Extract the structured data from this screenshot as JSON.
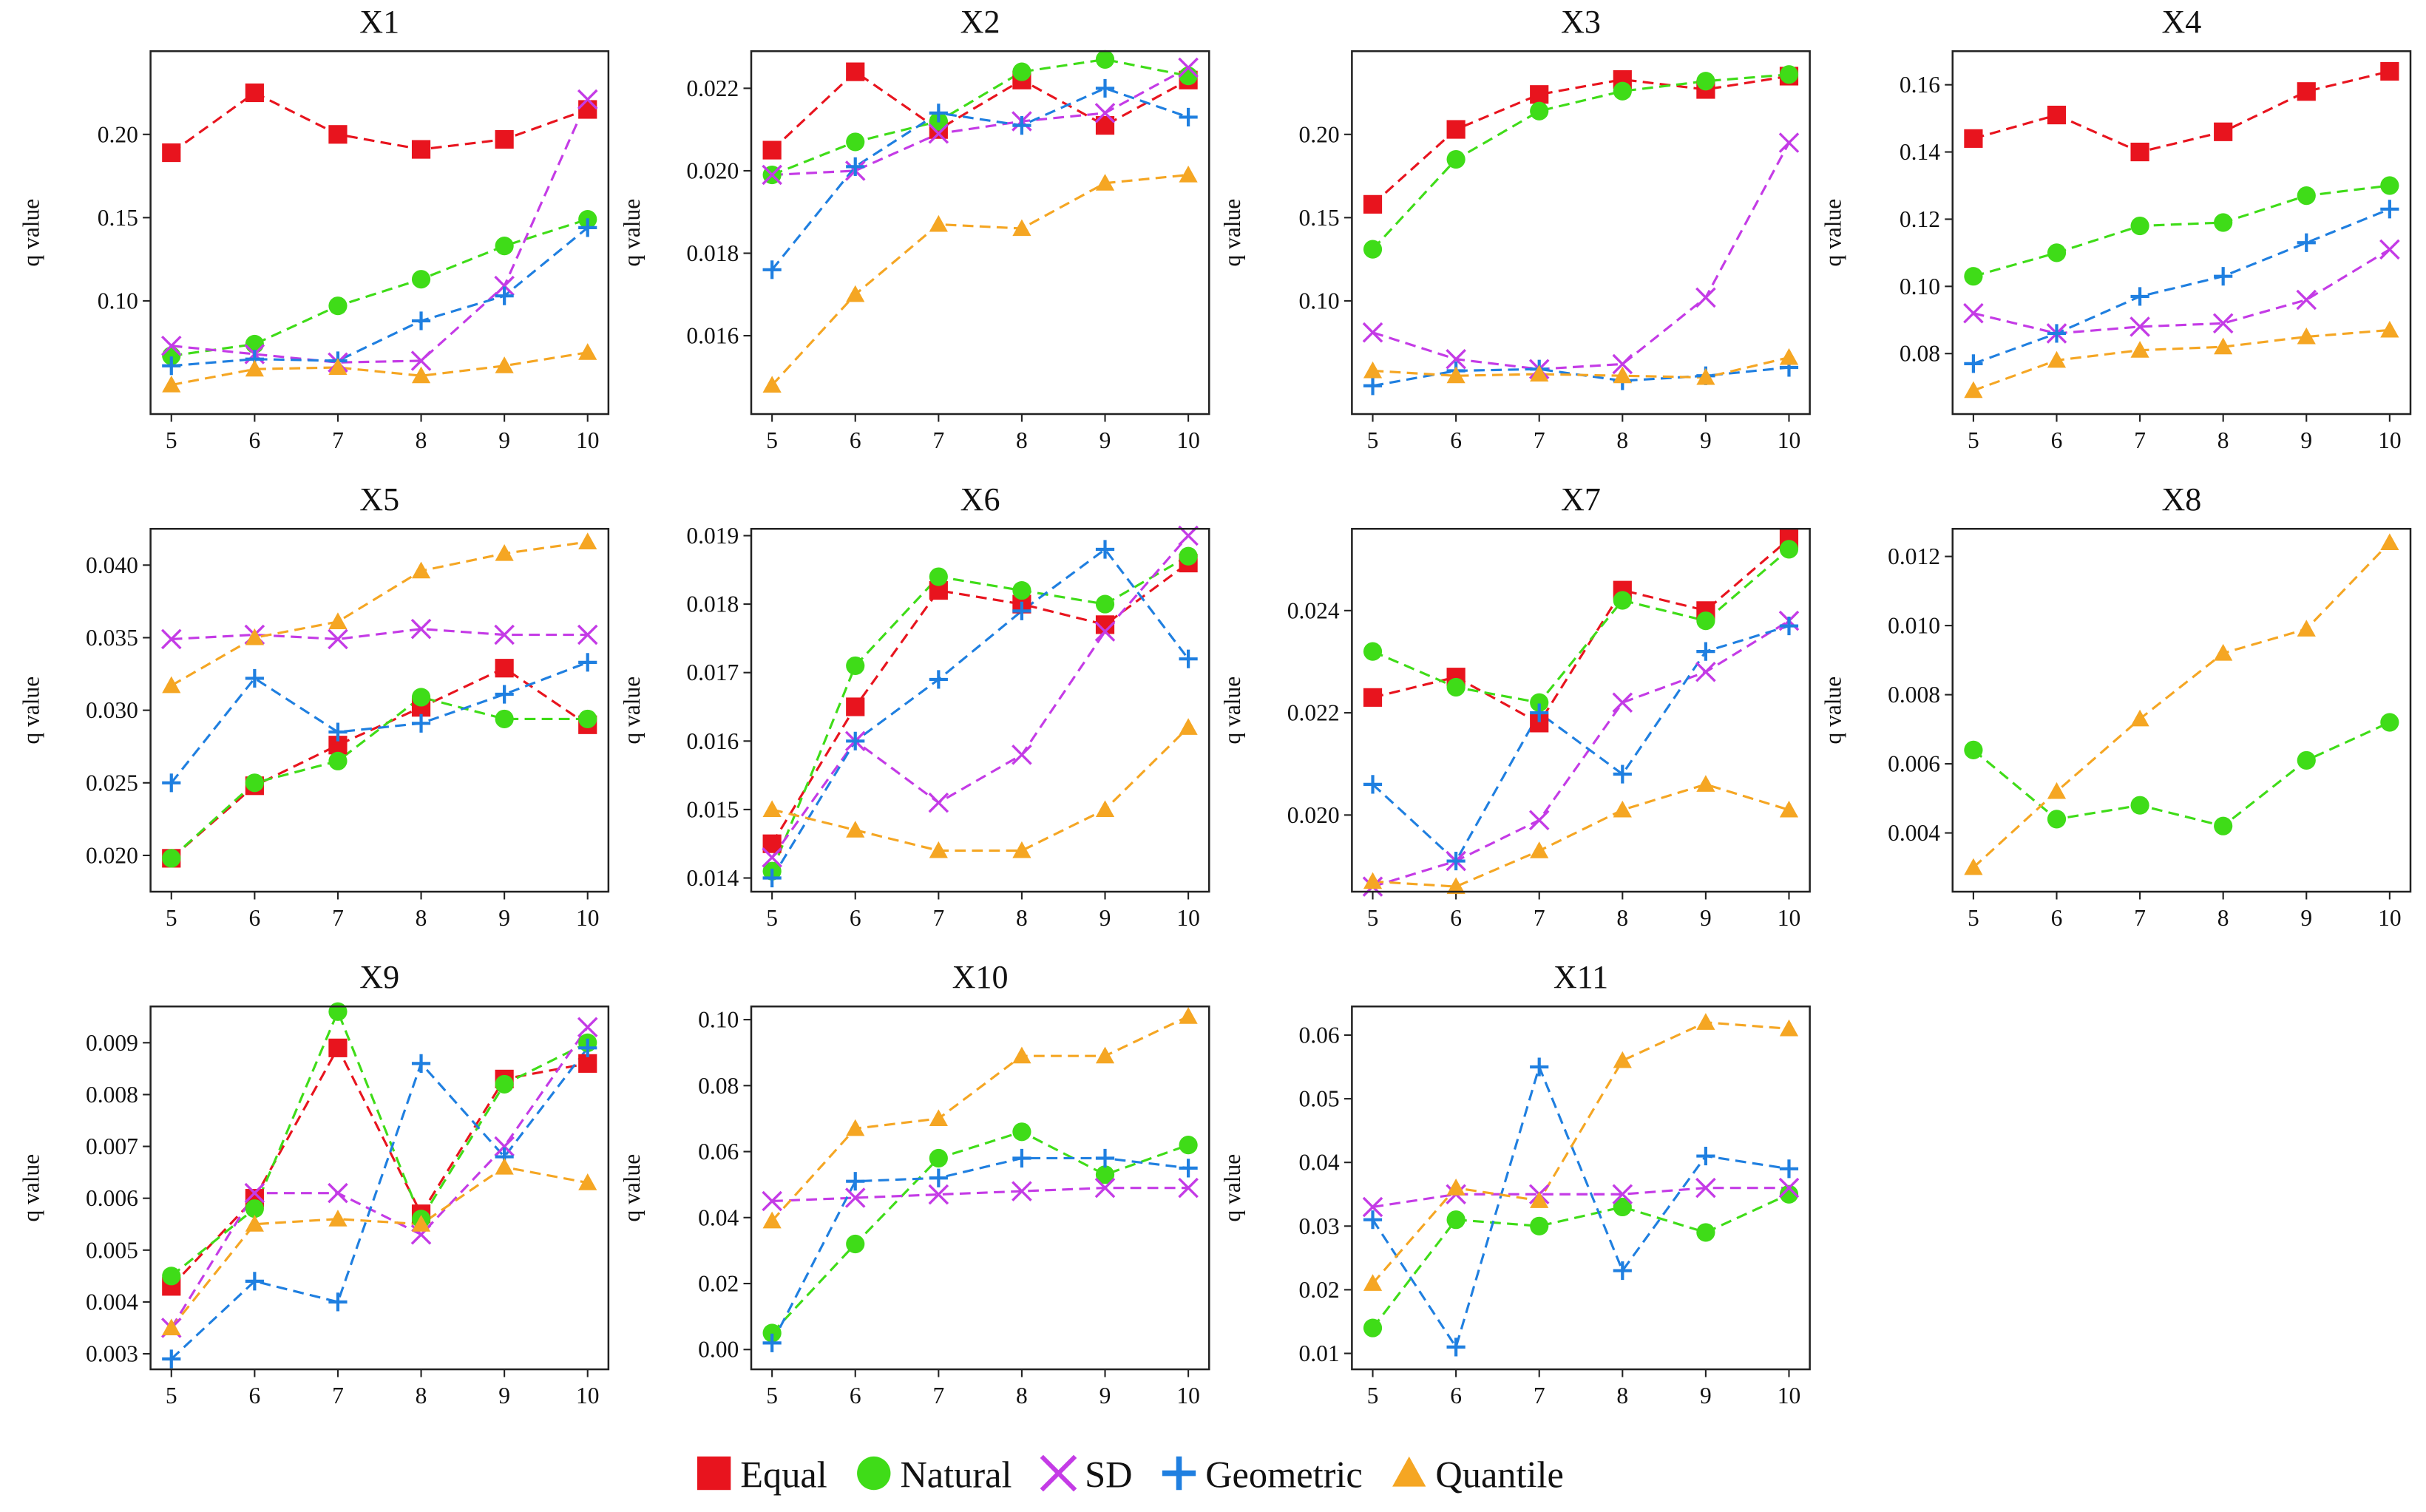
{
  "chart_data": [
    {
      "type": "line",
      "title": "X1",
      "ylabel": "q value",
      "x": [
        5,
        6,
        7,
        8,
        9,
        10
      ],
      "xlim": [
        4.75,
        10.25
      ],
      "xticks": [
        5,
        6,
        7,
        8,
        9,
        10
      ],
      "ylim": [
        0.032,
        0.25
      ],
      "yticks": [
        {
          "value": 0.1,
          "label": "0.10"
        },
        0.15,
        {
          "value": 0.2,
          "label": "0.20"
        }
      ],
      "series": [
        {
          "name": "Equal",
          "color": "#e8141e",
          "marker": "square",
          "values": [
            0.189,
            0.225,
            0.2,
            0.191,
            0.197,
            0.215
          ]
        },
        {
          "name": "Natural",
          "color": "#3fdc18",
          "marker": "circle",
          "values": [
            0.067,
            0.074,
            0.097,
            0.113,
            0.133,
            0.149
          ]
        },
        {
          "name": "SD",
          "color": "#c43be6",
          "marker": "x",
          "values": [
            0.073,
            0.068,
            0.063,
            0.064,
            0.109,
            0.221
          ]
        },
        {
          "name": "Geometric",
          "color": "#1f7fe0",
          "marker": "plus",
          "values": [
            0.061,
            0.065,
            0.064,
            0.088,
            0.103,
            0.144
          ]
        },
        {
          "name": "Quantile",
          "color": "#f5a623",
          "marker": "triangle",
          "values": [
            0.0495,
            0.059,
            0.06,
            0.055,
            0.061,
            0.069
          ]
        }
      ]
    },
    {
      "type": "line",
      "title": "X2",
      "ylabel": "q value",
      "x": [
        5,
        6,
        7,
        8,
        9,
        10
      ],
      "xlim": [
        4.75,
        10.25
      ],
      "xticks": [
        5,
        6,
        7,
        8,
        9,
        10
      ],
      "ylim": [
        0.0141,
        0.0229
      ],
      "yticks": [
        0.016,
        0.018,
        {
          "value": 0.02,
          "label": "0.020"
        },
        0.022
      ],
      "series": [
        {
          "name": "Equal",
          "color": "#e8141e",
          "marker": "square",
          "values": [
            0.0205,
            0.0224,
            0.021,
            0.0222,
            0.0211,
            0.0222
          ]
        },
        {
          "name": "Natural",
          "color": "#3fdc18",
          "marker": "circle",
          "values": [
            0.0199,
            0.0207,
            0.0212,
            0.0224,
            0.0227,
            0.0223
          ]
        },
        {
          "name": "SD",
          "color": "#c43be6",
          "marker": "x",
          "values": [
            0.0199,
            0.02,
            0.0209,
            0.0212,
            0.0214,
            0.0225
          ]
        },
        {
          "name": "Geometric",
          "color": "#1f7fe0",
          "marker": "plus",
          "values": [
            0.0176,
            0.0201,
            0.0214,
            0.0211,
            0.022,
            0.0213
          ]
        },
        {
          "name": "Quantile",
          "color": "#f5a623",
          "marker": "triangle",
          "values": [
            0.0148,
            0.017,
            0.0187,
            0.0186,
            0.0197,
            0.0199
          ]
        }
      ]
    },
    {
      "type": "line",
      "title": "X3",
      "ylabel": "q value",
      "x": [
        5,
        6,
        7,
        8,
        9,
        10
      ],
      "xlim": [
        4.75,
        10.25
      ],
      "xticks": [
        5,
        6,
        7,
        8,
        9,
        10
      ],
      "ylim": [
        0.032,
        0.25
      ],
      "yticks": [
        {
          "value": 0.1,
          "label": "0.10"
        },
        0.15,
        {
          "value": 0.2,
          "label": "0.20"
        }
      ],
      "series": [
        {
          "name": "Equal",
          "color": "#e8141e",
          "marker": "square",
          "values": [
            0.158,
            0.203,
            0.224,
            0.233,
            0.227,
            0.235
          ]
        },
        {
          "name": "Natural",
          "color": "#3fdc18",
          "marker": "circle",
          "values": [
            0.131,
            0.185,
            0.214,
            0.226,
            0.232,
            0.236
          ]
        },
        {
          "name": "SD",
          "color": "#c43be6",
          "marker": "x",
          "values": [
            0.081,
            0.065,
            0.059,
            0.062,
            0.102,
            0.195
          ]
        },
        {
          "name": "Geometric",
          "color": "#1f7fe0",
          "marker": "plus",
          "values": [
            0.049,
            0.058,
            0.059,
            0.052,
            0.055,
            0.06
          ]
        },
        {
          "name": "Quantile",
          "color": "#f5a623",
          "marker": "triangle",
          "values": [
            0.058,
            0.055,
            0.056,
            0.055,
            0.054,
            0.066
          ]
        }
      ]
    },
    {
      "type": "line",
      "title": "X4",
      "ylabel": "q value",
      "x": [
        5,
        6,
        7,
        8,
        9,
        10
      ],
      "xlim": [
        4.75,
        10.25
      ],
      "xticks": [
        5,
        6,
        7,
        8,
        9,
        10
      ],
      "ylim": [
        0.062,
        0.17
      ],
      "yticks": [
        0.08,
        {
          "value": 0.1,
          "label": "0.10"
        },
        0.12,
        0.14,
        0.16
      ],
      "series": [
        {
          "name": "Equal",
          "color": "#e8141e",
          "marker": "square",
          "values": [
            0.144,
            0.151,
            0.14,
            0.146,
            0.158,
            0.164
          ]
        },
        {
          "name": "Natural",
          "color": "#3fdc18",
          "marker": "circle",
          "values": [
            0.103,
            0.11,
            0.118,
            0.119,
            0.127,
            0.13
          ]
        },
        {
          "name": "SD",
          "color": "#c43be6",
          "marker": "x",
          "values": [
            0.092,
            0.086,
            0.088,
            0.089,
            0.096,
            0.111
          ]
        },
        {
          "name": "Geometric",
          "color": "#1f7fe0",
          "marker": "plus",
          "values": [
            0.077,
            0.086,
            0.097,
            0.103,
            0.113,
            0.123
          ]
        },
        {
          "name": "Quantile",
          "color": "#f5a623",
          "marker": "triangle",
          "values": [
            0.069,
            0.078,
            0.081,
            0.082,
            0.085,
            0.087
          ]
        }
      ]
    },
    {
      "type": "line",
      "title": "X5",
      "ylabel": "q value",
      "x": [
        5,
        6,
        7,
        8,
        9,
        10
      ],
      "xlim": [
        4.75,
        10.25
      ],
      "xticks": [
        5,
        6,
        7,
        8,
        9,
        10
      ],
      "ylim": [
        0.0175,
        0.0425
      ],
      "yticks": [
        {
          "value": 0.02,
          "label": "0.020"
        },
        0.025,
        {
          "value": 0.03,
          "label": "0.030"
        },
        0.035,
        {
          "value": 0.04,
          "label": "0.040"
        }
      ],
      "series": [
        {
          "name": "Equal",
          "color": "#e8141e",
          "marker": "square",
          "values": [
            0.0198,
            0.0248,
            0.0276,
            0.0302,
            0.0329,
            0.029
          ]
        },
        {
          "name": "Natural",
          "color": "#3fdc18",
          "marker": "circle",
          "values": [
            0.0198,
            0.025,
            0.0265,
            0.0309,
            0.0294,
            0.0294
          ]
        },
        {
          "name": "SD",
          "color": "#c43be6",
          "marker": "x",
          "values": [
            0.0349,
            0.0352,
            0.0349,
            0.0356,
            0.0352,
            0.0352
          ]
        },
        {
          "name": "Geometric",
          "color": "#1f7fe0",
          "marker": "plus",
          "values": [
            0.025,
            0.0322,
            0.0285,
            0.0291,
            0.0311,
            0.0333
          ]
        },
        {
          "name": "Quantile",
          "color": "#f5a623",
          "marker": "triangle",
          "values": [
            0.0317,
            0.035,
            0.0361,
            0.0396,
            0.0408,
            0.0416
          ]
        }
      ]
    },
    {
      "type": "line",
      "title": "X6",
      "ylabel": "q value",
      "x": [
        5,
        6,
        7,
        8,
        9,
        10
      ],
      "xlim": [
        4.75,
        10.25
      ],
      "xticks": [
        5,
        6,
        7,
        8,
        9,
        10
      ],
      "ylim": [
        0.0138,
        0.0191
      ],
      "yticks": [
        0.014,
        0.015,
        0.016,
        0.017,
        0.018,
        0.019
      ],
      "series": [
        {
          "name": "Equal",
          "color": "#e8141e",
          "marker": "square",
          "values": [
            0.0145,
            0.0165,
            0.0182,
            0.018,
            0.0177,
            0.0186
          ]
        },
        {
          "name": "Natural",
          "color": "#3fdc18",
          "marker": "circle",
          "values": [
            0.0141,
            0.0171,
            0.0184,
            0.0182,
            0.018,
            0.0187
          ]
        },
        {
          "name": "SD",
          "color": "#c43be6",
          "marker": "x",
          "values": [
            0.0143,
            0.016,
            0.0151,
            0.0158,
            0.0176,
            0.019
          ]
        },
        {
          "name": "Geometric",
          "color": "#1f7fe0",
          "marker": "plus",
          "values": [
            0.014,
            0.016,
            0.0169,
            0.0179,
            0.0188,
            0.0172
          ]
        },
        {
          "name": "Quantile",
          "color": "#f5a623",
          "marker": "triangle",
          "values": [
            0.015,
            0.0147,
            0.0144,
            0.0144,
            0.015,
            0.0162
          ]
        }
      ]
    },
    {
      "type": "line",
      "title": "X7",
      "ylabel": "q value",
      "x": [
        5,
        6,
        7,
        8,
        9,
        10
      ],
      "xlim": [
        4.75,
        10.25
      ],
      "xticks": [
        5,
        6,
        7,
        8,
        9,
        10
      ],
      "ylim": [
        0.0185,
        0.0256
      ],
      "yticks": [
        {
          "value": 0.02,
          "label": "0.020"
        },
        0.022,
        0.024
      ],
      "series": [
        {
          "name": "Equal",
          "color": "#e8141e",
          "marker": "square",
          "values": [
            0.0223,
            0.0227,
            0.0218,
            0.0244,
            0.024,
            0.0254
          ]
        },
        {
          "name": "Natural",
          "color": "#3fdc18",
          "marker": "circle",
          "values": [
            0.0232,
            0.0225,
            0.0222,
            0.0242,
            0.0238,
            0.0252
          ]
        },
        {
          "name": "SD",
          "color": "#c43be6",
          "marker": "x",
          "values": [
            0.0186,
            0.0191,
            0.0199,
            0.0222,
            0.0228,
            0.0238
          ]
        },
        {
          "name": "Geometric",
          "color": "#1f7fe0",
          "marker": "plus",
          "values": [
            0.0206,
            0.0191,
            0.022,
            0.0208,
            0.0232,
            0.0237
          ]
        },
        {
          "name": "Quantile",
          "color": "#f5a623",
          "marker": "triangle",
          "values": [
            0.0187,
            0.0186,
            0.0193,
            0.0201,
            0.0206,
            0.0201
          ]
        }
      ]
    },
    {
      "type": "line",
      "title": "X8",
      "ylabel": "q value",
      "x": [
        5,
        6,
        7,
        8,
        9,
        10
      ],
      "xlim": [
        4.75,
        10.25
      ],
      "xticks": [
        5,
        6,
        7,
        8,
        9,
        10
      ],
      "ylim": [
        0.0023,
        0.0128
      ],
      "yticks": [
        0.004,
        0.006,
        0.008,
        {
          "value": 0.01,
          "label": "0.010"
        },
        0.012
      ],
      "series": [
        {
          "name": "Natural",
          "color": "#3fdc18",
          "marker": "circle",
          "values": [
            0.0064,
            0.0044,
            0.0048,
            0.0042,
            0.0061,
            0.0072
          ]
        },
        {
          "name": "Quantile",
          "color": "#f5a623",
          "marker": "triangle",
          "values": [
            0.003,
            0.0052,
            0.0073,
            0.0092,
            0.0099,
            0.0124
          ]
        }
      ]
    },
    {
      "type": "line",
      "title": "X9",
      "ylabel": "q value",
      "x": [
        5,
        6,
        7,
        8,
        9,
        10
      ],
      "xlim": [
        4.75,
        10.25
      ],
      "xticks": [
        5,
        6,
        7,
        8,
        9,
        10
      ],
      "ylim": [
        0.0027,
        0.0097
      ],
      "yticks": [
        0.003,
        0.004,
        0.005,
        0.006,
        0.007,
        0.008,
        0.009
      ],
      "series": [
        {
          "name": "Equal",
          "color": "#e8141e",
          "marker": "square",
          "values": [
            0.0043,
            0.006,
            0.0089,
            0.0057,
            0.0083,
            0.0086
          ]
        },
        {
          "name": "Natural",
          "color": "#3fdc18",
          "marker": "circle",
          "values": [
            0.0045,
            0.0058,
            0.0096,
            0.0056,
            0.0082,
            0.009
          ]
        },
        {
          "name": "SD",
          "color": "#c43be6",
          "marker": "x",
          "values": [
            0.0035,
            0.0061,
            0.0061,
            0.0053,
            0.007,
            0.0093
          ]
        },
        {
          "name": "Geometric",
          "color": "#1f7fe0",
          "marker": "plus",
          "values": [
            0.0029,
            0.0044,
            0.004,
            0.0086,
            0.0068,
            0.0089
          ]
        },
        {
          "name": "Quantile",
          "color": "#f5a623",
          "marker": "triangle",
          "values": [
            0.0035,
            0.0055,
            0.0056,
            0.0055,
            0.0066,
            0.0063
          ]
        }
      ]
    },
    {
      "type": "line",
      "title": "X10",
      "ylabel": "q value",
      "x": [
        5,
        6,
        7,
        8,
        9,
        10
      ],
      "xlim": [
        4.75,
        10.25
      ],
      "xticks": [
        5,
        6,
        7,
        8,
        9,
        10
      ],
      "ylim": [
        -0.006,
        0.104
      ],
      "yticks": [
        {
          "value": 0,
          "label": "0.00"
        },
        0.02,
        0.04,
        0.06,
        0.08,
        {
          "value": 0.1,
          "label": "0.10"
        }
      ],
      "series": [
        {
          "name": "Natural",
          "color": "#3fdc18",
          "marker": "circle",
          "values": [
            0.005,
            0.032,
            0.058,
            0.066,
            0.053,
            0.062
          ]
        },
        {
          "name": "SD",
          "color": "#c43be6",
          "marker": "x",
          "values": [
            0.045,
            0.046,
            0.047,
            0.048,
            0.049,
            0.049
          ]
        },
        {
          "name": "Geometric",
          "color": "#1f7fe0",
          "marker": "plus",
          "values": [
            0.002,
            0.051,
            0.052,
            0.058,
            0.058,
            0.055
          ]
        },
        {
          "name": "Quantile",
          "color": "#f5a623",
          "marker": "triangle",
          "values": [
            0.039,
            0.067,
            0.07,
            0.089,
            0.089,
            0.101
          ]
        }
      ]
    },
    {
      "type": "line",
      "title": "X11",
      "ylabel": "q value",
      "x": [
        5,
        6,
        7,
        8,
        9,
        10
      ],
      "xlim": [
        4.75,
        10.25
      ],
      "xticks": [
        5,
        6,
        7,
        8,
        9,
        10
      ],
      "ylim": [
        0.0075,
        0.0645
      ],
      "yticks": [
        0.01,
        0.02,
        0.03,
        0.04,
        0.05,
        0.06
      ],
      "series": [
        {
          "name": "Natural",
          "color": "#3fdc18",
          "marker": "circle",
          "values": [
            0.014,
            0.031,
            0.03,
            0.033,
            0.029,
            0.035
          ]
        },
        {
          "name": "SD",
          "color": "#c43be6",
          "marker": "x",
          "values": [
            0.033,
            0.035,
            0.035,
            0.035,
            0.036,
            0.036
          ]
        },
        {
          "name": "Geometric",
          "color": "#1f7fe0",
          "marker": "plus",
          "values": [
            0.031,
            0.011,
            0.055,
            0.023,
            0.041,
            0.039
          ]
        },
        {
          "name": "Quantile",
          "color": "#f5a623",
          "marker": "triangle",
          "values": [
            0.021,
            0.036,
            0.034,
            0.056,
            0.062,
            0.061
          ]
        }
      ]
    }
  ]
}
